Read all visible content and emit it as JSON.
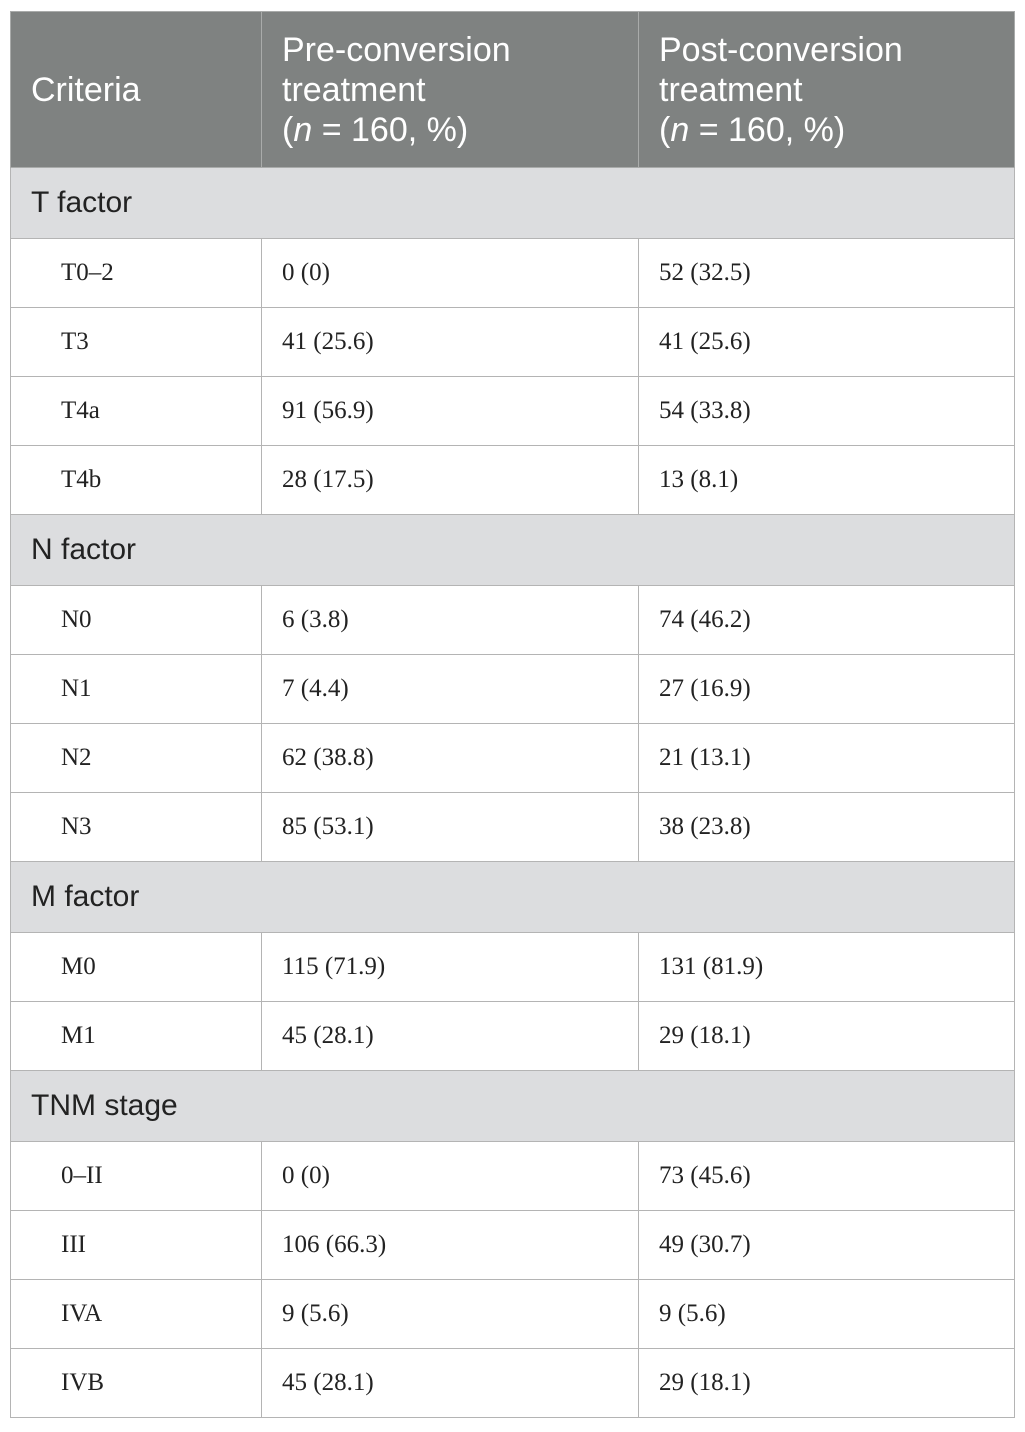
{
  "header": {
    "col1": "Criteria",
    "col2_line1": "Pre-conversion",
    "col2_line2": "treatment",
    "col3_line1": "Post-conversion",
    "col3_line2": "treatment",
    "n_var": "n",
    "n_rest": " = 160, %)",
    "n_open": "("
  },
  "sections": [
    {
      "title": "T factor",
      "rows": [
        {
          "label": "T0–2",
          "pre": "0 (0)",
          "post": "52 (32.5)"
        },
        {
          "label": "T3",
          "pre": "41 (25.6)",
          "post": "41 (25.6)"
        },
        {
          "label": "T4a",
          "pre": "91 (56.9)",
          "post": "54 (33.8)"
        },
        {
          "label": "T4b",
          "pre": "28 (17.5)",
          "post": "13 (8.1)"
        }
      ]
    },
    {
      "title": "N factor",
      "rows": [
        {
          "label": "N0",
          "pre": "6 (3.8)",
          "post": "74 (46.2)"
        },
        {
          "label": "N1",
          "pre": "7 (4.4)",
          "post": "27 (16.9)"
        },
        {
          "label": "N2",
          "pre": "62 (38.8)",
          "post": "21 (13.1)"
        },
        {
          "label": "N3",
          "pre": "85 (53.1)",
          "post": "38 (23.8)"
        }
      ]
    },
    {
      "title": "M factor",
      "rows": [
        {
          "label": "M0",
          "pre": "115 (71.9)",
          "post": "131 (81.9)"
        },
        {
          "label": "M1",
          "pre": "45 (28.1)",
          "post": "29 (18.1)"
        }
      ]
    },
    {
      "title": "TNM stage",
      "rows": [
        {
          "label": "0–II",
          "pre": "0 (0)",
          "post": "73 (45.6)"
        },
        {
          "label": "III",
          "pre": "106 (66.3)",
          "post": "49 (30.7)"
        },
        {
          "label": "IVA",
          "pre": "9 (5.6)",
          "post": "9 (5.6)"
        },
        {
          "label": "IVB",
          "pre": "45 (28.1)",
          "post": "29 (18.1)"
        }
      ]
    }
  ]
}
